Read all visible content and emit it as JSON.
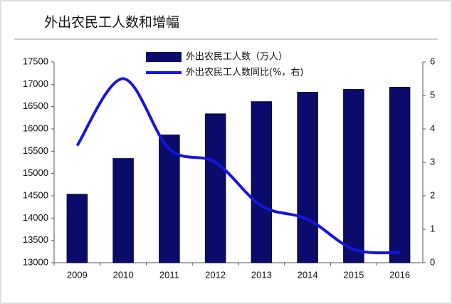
{
  "chart_data": {
    "type": "combo",
    "title": "外出农民工人数和增幅",
    "categories": [
      "2009",
      "2010",
      "2011",
      "2012",
      "2013",
      "2014",
      "2015",
      "2016"
    ],
    "series": [
      {
        "name": "外出农民工人数（万人）",
        "type": "bar",
        "color": "#0b0b6b",
        "values": [
          14533,
          15335,
          15863,
          16336,
          16610,
          16821,
          16884,
          16934
        ]
      },
      {
        "name": "外出农民工人数同比(%，右)",
        "type": "line",
        "axis": "y2",
        "color": "#1515e0",
        "values": [
          3.5,
          5.5,
          3.4,
          3.0,
          1.7,
          1.3,
          0.4,
          0.3
        ]
      }
    ],
    "ylim": [
      13000,
      17500
    ],
    "yticks": [
      13000,
      13500,
      14000,
      14500,
      15000,
      15500,
      16000,
      16500,
      17000,
      17500
    ],
    "y2lim": [
      0,
      6
    ],
    "y2ticks": [
      0,
      1,
      2,
      3,
      4,
      5,
      6
    ],
    "legend": "top"
  }
}
